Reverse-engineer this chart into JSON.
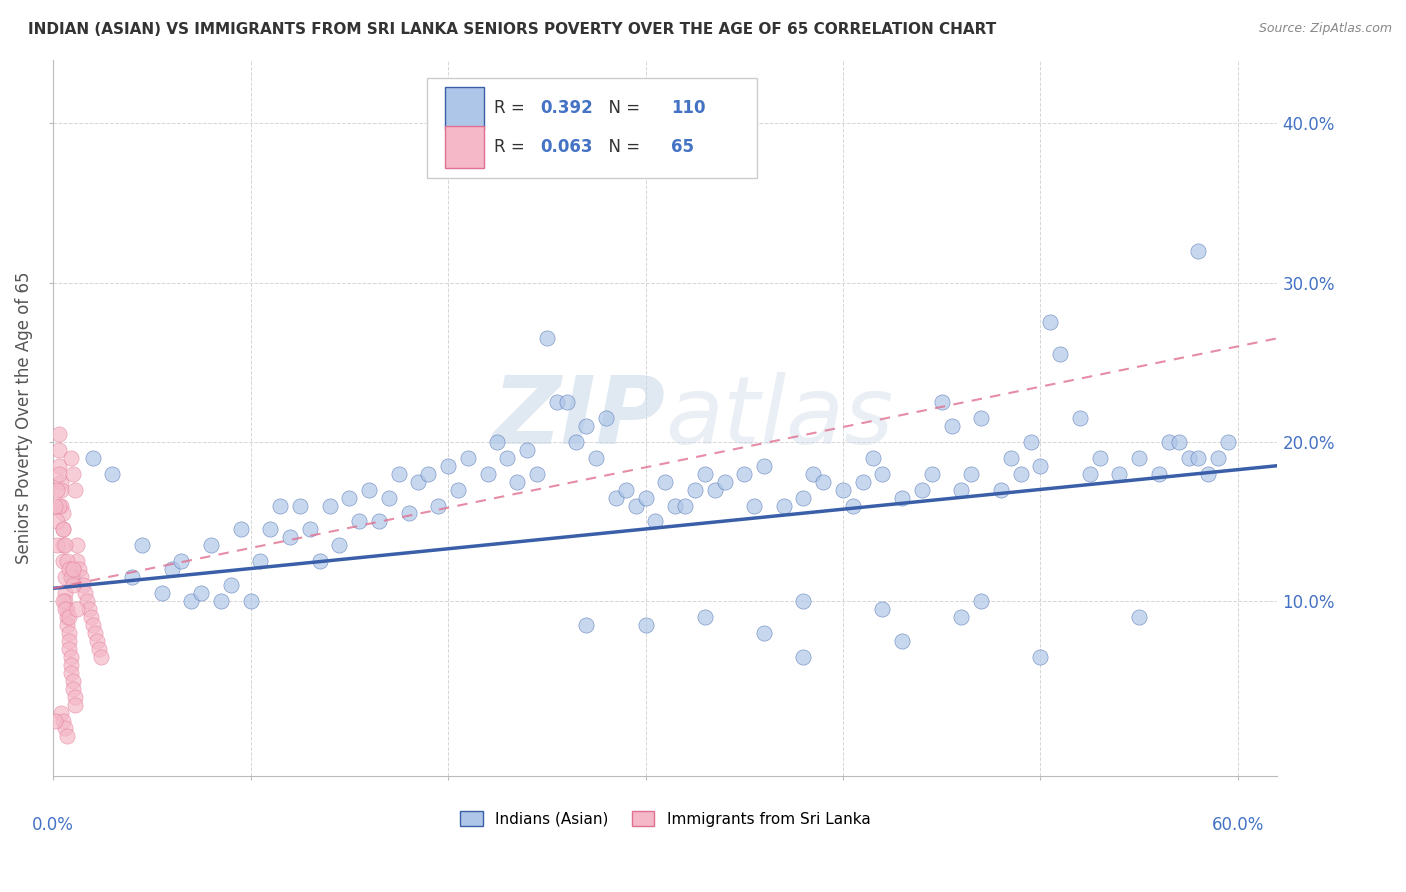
{
  "title": "INDIAN (ASIAN) VS IMMIGRANTS FROM SRI LANKA SENIORS POVERTY OVER THE AGE OF 65 CORRELATION CHART",
  "source": "Source: ZipAtlas.com",
  "ylabel": "Seniors Poverty Over the Age of 65",
  "xlim": [
    0.0,
    0.62
  ],
  "ylim": [
    -0.01,
    0.44
  ],
  "legend_blue_r": "0.392",
  "legend_blue_n": "110",
  "legend_pink_r": "0.063",
  "legend_pink_n": "65",
  "blue_scatter": [
    [
      0.01,
      0.115
    ],
    [
      0.02,
      0.19
    ],
    [
      0.03,
      0.18
    ],
    [
      0.04,
      0.115
    ],
    [
      0.045,
      0.135
    ],
    [
      0.055,
      0.105
    ],
    [
      0.06,
      0.12
    ],
    [
      0.065,
      0.125
    ],
    [
      0.07,
      0.1
    ],
    [
      0.075,
      0.105
    ],
    [
      0.08,
      0.135
    ],
    [
      0.085,
      0.1
    ],
    [
      0.09,
      0.11
    ],
    [
      0.095,
      0.145
    ],
    [
      0.1,
      0.1
    ],
    [
      0.105,
      0.125
    ],
    [
      0.11,
      0.145
    ],
    [
      0.115,
      0.16
    ],
    [
      0.12,
      0.14
    ],
    [
      0.125,
      0.16
    ],
    [
      0.13,
      0.145
    ],
    [
      0.135,
      0.125
    ],
    [
      0.14,
      0.16
    ],
    [
      0.145,
      0.135
    ],
    [
      0.15,
      0.165
    ],
    [
      0.155,
      0.15
    ],
    [
      0.16,
      0.17
    ],
    [
      0.165,
      0.15
    ],
    [
      0.17,
      0.165
    ],
    [
      0.175,
      0.18
    ],
    [
      0.18,
      0.155
    ],
    [
      0.185,
      0.175
    ],
    [
      0.19,
      0.18
    ],
    [
      0.195,
      0.16
    ],
    [
      0.2,
      0.185
    ],
    [
      0.205,
      0.17
    ],
    [
      0.21,
      0.19
    ],
    [
      0.22,
      0.18
    ],
    [
      0.225,
      0.2
    ],
    [
      0.23,
      0.19
    ],
    [
      0.235,
      0.175
    ],
    [
      0.24,
      0.195
    ],
    [
      0.245,
      0.18
    ],
    [
      0.25,
      0.265
    ],
    [
      0.255,
      0.225
    ],
    [
      0.26,
      0.225
    ],
    [
      0.265,
      0.2
    ],
    [
      0.27,
      0.21
    ],
    [
      0.275,
      0.19
    ],
    [
      0.28,
      0.215
    ],
    [
      0.285,
      0.165
    ],
    [
      0.29,
      0.17
    ],
    [
      0.295,
      0.16
    ],
    [
      0.3,
      0.165
    ],
    [
      0.305,
      0.15
    ],
    [
      0.31,
      0.175
    ],
    [
      0.315,
      0.16
    ],
    [
      0.32,
      0.16
    ],
    [
      0.325,
      0.17
    ],
    [
      0.33,
      0.18
    ],
    [
      0.335,
      0.17
    ],
    [
      0.34,
      0.175
    ],
    [
      0.35,
      0.18
    ],
    [
      0.355,
      0.16
    ],
    [
      0.36,
      0.185
    ],
    [
      0.37,
      0.16
    ],
    [
      0.38,
      0.165
    ],
    [
      0.385,
      0.18
    ],
    [
      0.39,
      0.175
    ],
    [
      0.4,
      0.17
    ],
    [
      0.405,
      0.16
    ],
    [
      0.41,
      0.175
    ],
    [
      0.415,
      0.19
    ],
    [
      0.42,
      0.18
    ],
    [
      0.43,
      0.165
    ],
    [
      0.44,
      0.17
    ],
    [
      0.445,
      0.18
    ],
    [
      0.45,
      0.225
    ],
    [
      0.455,
      0.21
    ],
    [
      0.46,
      0.17
    ],
    [
      0.465,
      0.18
    ],
    [
      0.47,
      0.215
    ],
    [
      0.48,
      0.17
    ],
    [
      0.485,
      0.19
    ],
    [
      0.49,
      0.18
    ],
    [
      0.495,
      0.2
    ],
    [
      0.5,
      0.185
    ],
    [
      0.505,
      0.275
    ],
    [
      0.51,
      0.255
    ],
    [
      0.52,
      0.215
    ],
    [
      0.525,
      0.18
    ],
    [
      0.53,
      0.19
    ],
    [
      0.54,
      0.18
    ],
    [
      0.55,
      0.19
    ],
    [
      0.56,
      0.18
    ],
    [
      0.565,
      0.2
    ],
    [
      0.57,
      0.2
    ],
    [
      0.575,
      0.19
    ],
    [
      0.58,
      0.19
    ],
    [
      0.585,
      0.18
    ],
    [
      0.59,
      0.19
    ],
    [
      0.595,
      0.2
    ],
    [
      0.58,
      0.32
    ],
    [
      0.27,
      0.085
    ],
    [
      0.46,
      0.09
    ],
    [
      0.3,
      0.085
    ],
    [
      0.55,
      0.09
    ],
    [
      0.38,
      0.065
    ],
    [
      0.5,
      0.065
    ],
    [
      0.36,
      0.08
    ],
    [
      0.43,
      0.075
    ],
    [
      0.42,
      0.095
    ],
    [
      0.47,
      0.1
    ],
    [
      0.38,
      0.1
    ],
    [
      0.33,
      0.09
    ]
  ],
  "pink_scatter": [
    [
      0.003,
      0.205
    ],
    [
      0.003,
      0.185
    ],
    [
      0.004,
      0.175
    ],
    [
      0.004,
      0.16
    ],
    [
      0.005,
      0.155
    ],
    [
      0.005,
      0.145
    ],
    [
      0.005,
      0.135
    ],
    [
      0.005,
      0.125
    ],
    [
      0.006,
      0.115
    ],
    [
      0.006,
      0.105
    ],
    [
      0.006,
      0.1
    ],
    [
      0.007,
      0.095
    ],
    [
      0.007,
      0.09
    ],
    [
      0.007,
      0.085
    ],
    [
      0.008,
      0.08
    ],
    [
      0.008,
      0.075
    ],
    [
      0.008,
      0.07
    ],
    [
      0.009,
      0.065
    ],
    [
      0.009,
      0.06
    ],
    [
      0.009,
      0.055
    ],
    [
      0.01,
      0.05
    ],
    [
      0.01,
      0.045
    ],
    [
      0.011,
      0.04
    ],
    [
      0.011,
      0.035
    ],
    [
      0.012,
      0.135
    ],
    [
      0.012,
      0.125
    ],
    [
      0.013,
      0.12
    ],
    [
      0.014,
      0.115
    ],
    [
      0.015,
      0.11
    ],
    [
      0.016,
      0.105
    ],
    [
      0.017,
      0.1
    ],
    [
      0.018,
      0.095
    ],
    [
      0.019,
      0.09
    ],
    [
      0.02,
      0.085
    ],
    [
      0.021,
      0.08
    ],
    [
      0.022,
      0.075
    ],
    [
      0.023,
      0.07
    ],
    [
      0.024,
      0.065
    ],
    [
      0.004,
      0.03
    ],
    [
      0.005,
      0.025
    ],
    [
      0.006,
      0.02
    ],
    [
      0.007,
      0.015
    ],
    [
      0.003,
      0.195
    ],
    [
      0.004,
      0.17
    ],
    [
      0.003,
      0.18
    ],
    [
      0.003,
      0.16
    ],
    [
      0.002,
      0.17
    ],
    [
      0.002,
      0.15
    ],
    [
      0.001,
      0.16
    ],
    [
      0.002,
      0.135
    ],
    [
      0.009,
      0.19
    ],
    [
      0.01,
      0.18
    ],
    [
      0.011,
      0.17
    ],
    [
      0.005,
      0.145
    ],
    [
      0.006,
      0.135
    ],
    [
      0.007,
      0.125
    ],
    [
      0.008,
      0.12
    ],
    [
      0.009,
      0.115
    ],
    [
      0.01,
      0.11
    ],
    [
      0.005,
      0.1
    ],
    [
      0.006,
      0.095
    ],
    [
      0.008,
      0.09
    ],
    [
      0.012,
      0.095
    ],
    [
      0.01,
      0.12
    ],
    [
      0.001,
      0.025
    ]
  ],
  "blue_line_x": [
    0.0,
    0.62
  ],
  "blue_line_y": [
    0.108,
    0.185
  ],
  "pink_line_x": [
    0.0,
    0.62
  ],
  "pink_line_y": [
    0.108,
    0.265
  ],
  "blue_color": "#aec6e8",
  "pink_color": "#f4b8c8",
  "blue_line_color": "#3a5fa8",
  "pink_line_color": "#e07090",
  "watermark_zip": "ZIP",
  "watermark_atlas": "atlas",
  "background_color": "#ffffff"
}
